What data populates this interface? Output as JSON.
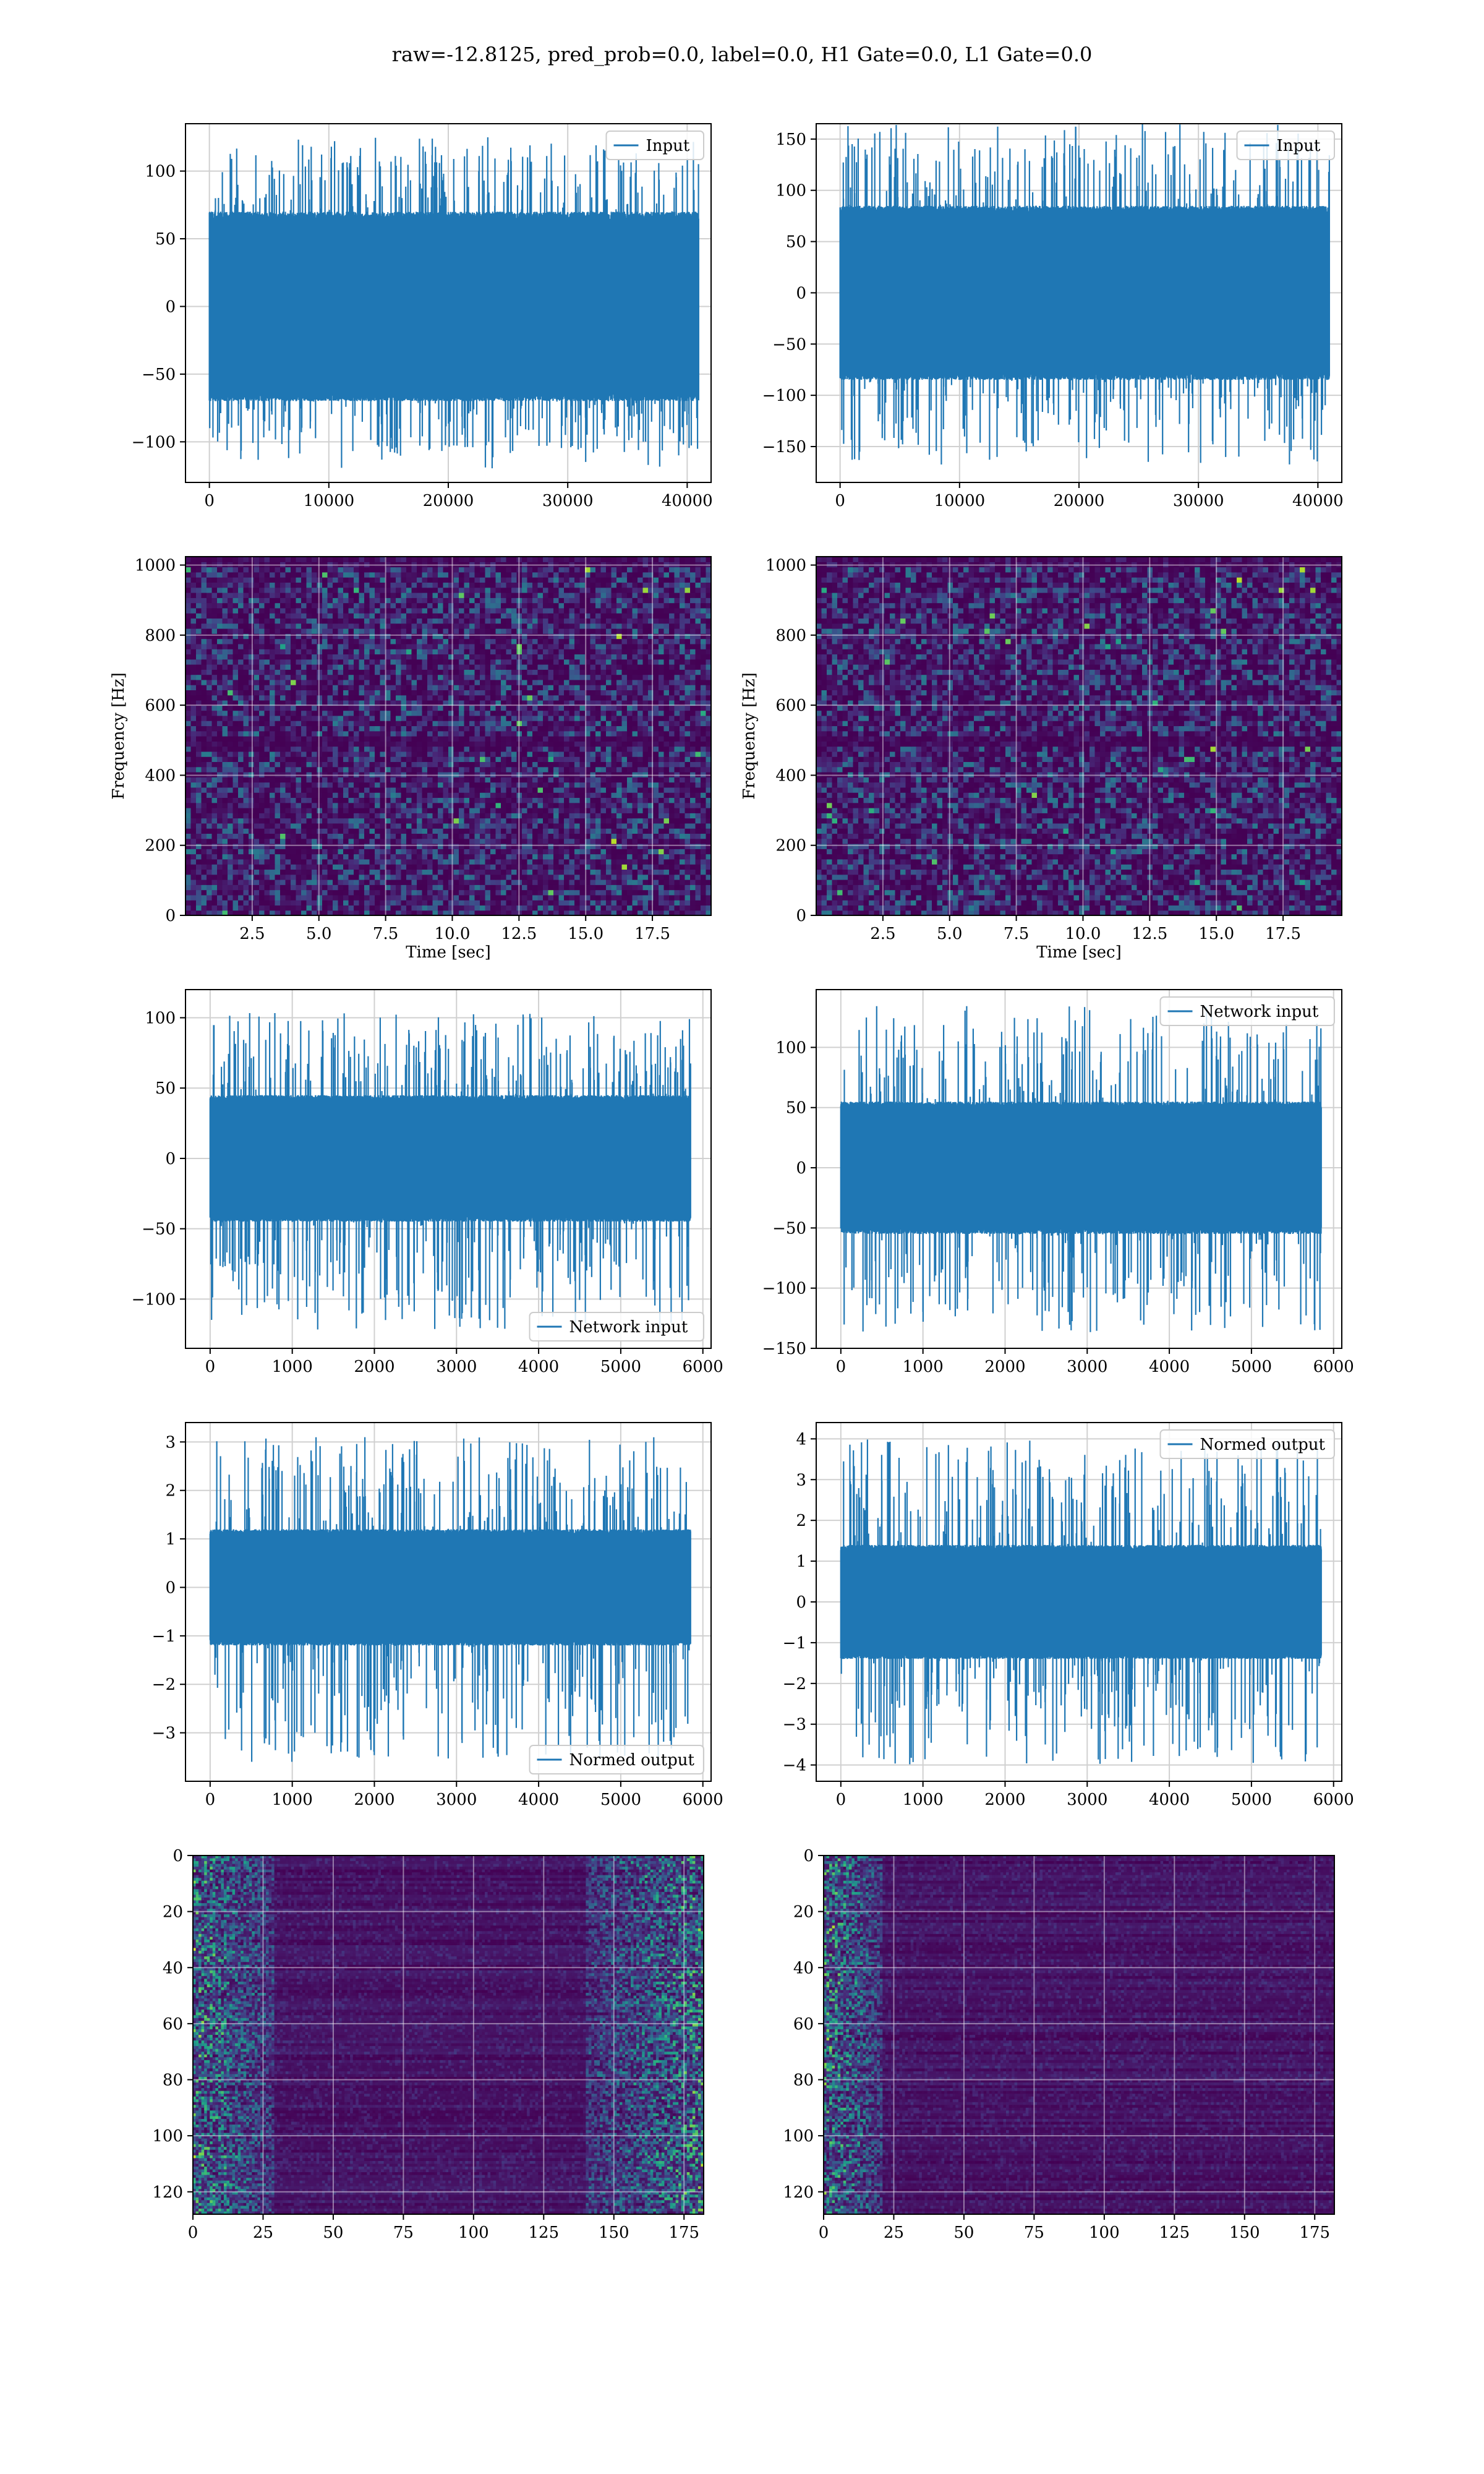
{
  "figure": {
    "suptitle": "raw=-12.8125, pred_prob=0.0, label=0.0, H1 Gate=0.0, L1 Gate=0.0",
    "colors": {
      "series": "#1f77b4",
      "grid": "#d0d0d0",
      "axis": "#000000",
      "viridis_dark": "#440154"
    }
  },
  "chart_data": [
    {
      "id": "input-h1",
      "type": "line",
      "row": 1,
      "col": 1,
      "title": "",
      "xlabel": "",
      "ylabel": "",
      "legend": {
        "entries": [
          "Input"
        ],
        "placement": "top-right"
      },
      "xlim": [
        -2000,
        42000
      ],
      "ylim": [
        -130,
        135
      ],
      "xticks": [
        0,
        10000,
        20000,
        30000,
        40000
      ],
      "xtick_labels": [
        "0",
        "10000",
        "20000",
        "30000",
        "40000"
      ],
      "yticks": [
        -100,
        -50,
        0,
        50,
        100
      ],
      "ytick_labels": [
        "−100",
        "−50",
        "0",
        "50",
        "100"
      ],
      "grid": true,
      "series": [
        {
          "name": "Input",
          "x_range": [
            0,
            40960
          ],
          "n_points": 40960,
          "core_abs": 70,
          "spike_max": 125,
          "spike_min": -120
        }
      ]
    },
    {
      "id": "input-l1",
      "type": "line",
      "row": 1,
      "col": 2,
      "title": "",
      "xlabel": "",
      "ylabel": "",
      "legend": {
        "entries": [
          "Input"
        ],
        "placement": "top-right"
      },
      "xlim": [
        -2000,
        42000
      ],
      "ylim": [
        -185,
        165
      ],
      "xticks": [
        0,
        10000,
        20000,
        30000,
        40000
      ],
      "xtick_labels": [
        "0",
        "10000",
        "20000",
        "30000",
        "40000"
      ],
      "yticks": [
        -150,
        -100,
        -50,
        0,
        50,
        100,
        150
      ],
      "ytick_labels": [
        "−150",
        "−100",
        "−50",
        "0",
        "50",
        "100",
        "150"
      ],
      "grid": true,
      "series": [
        {
          "name": "Input",
          "x_range": [
            0,
            40960
          ],
          "n_points": 40960,
          "core_abs": 85,
          "spike_max": 165,
          "spike_min": -168
        }
      ]
    },
    {
      "id": "spectrogram-h1",
      "type": "heatmap",
      "row": 2,
      "col": 1,
      "title": "",
      "xlabel": "Time [sec]",
      "ylabel": "Frequency [Hz]",
      "xlim": [
        0,
        19.7
      ],
      "ylim": [
        0,
        1024
      ],
      "xticks": [
        2.5,
        5.0,
        7.5,
        10.0,
        12.5,
        15.0,
        17.5
      ],
      "xtick_labels": [
        "2.5",
        "5.0",
        "7.5",
        "10.0",
        "12.5",
        "15.0",
        "17.5"
      ],
      "yticks": [
        0,
        200,
        400,
        600,
        800,
        1000
      ],
      "ytick_labels": [
        "0",
        "200",
        "400",
        "600",
        "800",
        "1000"
      ],
      "grid": true,
      "colormap": "viridis",
      "y_origin": "lower",
      "features": {
        "dark_band_hz": [
          490,
          510
        ],
        "top_band_hz": [
          1000,
          1024
        ]
      }
    },
    {
      "id": "spectrogram-l1",
      "type": "heatmap",
      "row": 2,
      "col": 2,
      "title": "",
      "xlabel": "Time [sec]",
      "ylabel": "Frequency [Hz]",
      "xlim": [
        0,
        19.7
      ],
      "ylim": [
        0,
        1024
      ],
      "xticks": [
        2.5,
        5.0,
        7.5,
        10.0,
        12.5,
        15.0,
        17.5
      ],
      "xtick_labels": [
        "2.5",
        "5.0",
        "7.5",
        "10.0",
        "12.5",
        "15.0",
        "17.5"
      ],
      "yticks": [
        0,
        200,
        400,
        600,
        800,
        1000
      ],
      "ytick_labels": [
        "0",
        "200",
        "400",
        "600",
        "800",
        "1000"
      ],
      "grid": true,
      "colormap": "viridis",
      "y_origin": "lower",
      "features": {
        "dark_band_hz": [
          490,
          510
        ],
        "top_band_hz": [
          1000,
          1024
        ]
      }
    },
    {
      "id": "network-input-h1",
      "type": "line",
      "row": 3,
      "col": 1,
      "title": "",
      "xlabel": "",
      "ylabel": "",
      "legend": {
        "entries": [
          "Network input"
        ],
        "placement": "lower-right"
      },
      "xlim": [
        -300,
        6100
      ],
      "ylim": [
        -135,
        120
      ],
      "xticks": [
        0,
        1000,
        2000,
        3000,
        4000,
        5000,
        6000
      ],
      "xtick_labels": [
        "0",
        "1000",
        "2000",
        "3000",
        "4000",
        "5000",
        "6000"
      ],
      "yticks": [
        -100,
        -50,
        0,
        50,
        100
      ],
      "ytick_labels": [
        "−100",
        "−50",
        "0",
        "50",
        "100"
      ],
      "grid": true,
      "series": [
        {
          "name": "Network input",
          "x_range": [
            0,
            5850
          ],
          "n_points": 5850,
          "core_abs": 45,
          "spike_max": 104,
          "spike_min": -122
        }
      ]
    },
    {
      "id": "network-input-l1",
      "type": "line",
      "row": 3,
      "col": 2,
      "title": "",
      "xlabel": "",
      "ylabel": "",
      "legend": {
        "entries": [
          "Network input"
        ],
        "placement": "top-right"
      },
      "xlim": [
        -300,
        6100
      ],
      "ylim": [
        -150,
        148
      ],
      "xticks": [
        0,
        1000,
        2000,
        3000,
        4000,
        5000,
        6000
      ],
      "xtick_labels": [
        "0",
        "1000",
        "2000",
        "3000",
        "4000",
        "5000",
        "6000"
      ],
      "yticks": [
        -150,
        -100,
        -50,
        0,
        50,
        100
      ],
      "ytick_labels": [
        "−150",
        "−100",
        "−50",
        "0",
        "50",
        "100"
      ],
      "grid": true,
      "series": [
        {
          "name": "Network input",
          "x_range": [
            0,
            5850
          ],
          "n_points": 5850,
          "core_abs": 55,
          "spike_max": 135,
          "spike_min": -137
        }
      ]
    },
    {
      "id": "normed-output-h1",
      "type": "line",
      "row": 4,
      "col": 1,
      "title": "",
      "xlabel": "",
      "ylabel": "",
      "legend": {
        "entries": [
          "Normed output"
        ],
        "placement": "lower-right"
      },
      "xlim": [
        -300,
        6100
      ],
      "ylim": [
        -4.0,
        3.4
      ],
      "xticks": [
        0,
        1000,
        2000,
        3000,
        4000,
        5000,
        6000
      ],
      "xtick_labels": [
        "0",
        "1000",
        "2000",
        "3000",
        "4000",
        "5000",
        "6000"
      ],
      "yticks": [
        -3,
        -2,
        -1,
        0,
        1,
        2,
        3
      ],
      "ytick_labels": [
        "−3",
        "−2",
        "−1",
        "0",
        "1",
        "2",
        "3"
      ],
      "grid": true,
      "series": [
        {
          "name": "Normed output",
          "x_range": [
            0,
            5850
          ],
          "n_points": 5850,
          "core_abs": 1.2,
          "spike_max": 3.1,
          "spike_min": -3.6
        }
      ]
    },
    {
      "id": "normed-output-l1",
      "type": "line",
      "row": 4,
      "col": 2,
      "title": "",
      "xlabel": "",
      "ylabel": "",
      "legend": {
        "entries": [
          "Normed output"
        ],
        "placement": "top-right"
      },
      "xlim": [
        -300,
        6100
      ],
      "ylim": [
        -4.4,
        4.4
      ],
      "xticks": [
        0,
        1000,
        2000,
        3000,
        4000,
        5000,
        6000
      ],
      "xtick_labels": [
        "0",
        "1000",
        "2000",
        "3000",
        "4000",
        "5000",
        "6000"
      ],
      "yticks": [
        -4,
        -3,
        -2,
        -1,
        0,
        1,
        2,
        3,
        4
      ],
      "ytick_labels": [
        "−4",
        "−3",
        "−2",
        "−1",
        "0",
        "1",
        "2",
        "3",
        "4"
      ],
      "grid": true,
      "series": [
        {
          "name": "Normed output",
          "x_range": [
            0,
            5850
          ],
          "n_points": 5850,
          "core_abs": 1.4,
          "spike_max": 4.0,
          "spike_min": -4.0
        }
      ]
    },
    {
      "id": "feature-map-h1",
      "type": "heatmap",
      "row": 5,
      "col": 1,
      "title": "",
      "xlabel": "",
      "ylabel": "",
      "xlim": [
        0,
        182
      ],
      "ylim": [
        128,
        0
      ],
      "xticks": [
        0,
        25,
        50,
        75,
        100,
        125,
        150,
        175
      ],
      "xtick_labels": [
        "0",
        "25",
        "50",
        "75",
        "100",
        "125",
        "150",
        "175"
      ],
      "yticks": [
        0,
        20,
        40,
        60,
        80,
        100,
        120
      ],
      "ytick_labels": [
        "0",
        "20",
        "40",
        "60",
        "80",
        "100",
        "120"
      ],
      "grid": true,
      "colormap": "viridis",
      "y_origin": "upper",
      "features": {
        "bright_columns": [
          [
            0,
            28
          ],
          [
            140,
            182
          ]
        ]
      }
    },
    {
      "id": "feature-map-l1",
      "type": "heatmap",
      "row": 5,
      "col": 2,
      "title": "",
      "xlabel": "",
      "ylabel": "",
      "xlim": [
        0,
        182
      ],
      "ylim": [
        128,
        0
      ],
      "xticks": [
        0,
        25,
        50,
        75,
        100,
        125,
        150,
        175
      ],
      "xtick_labels": [
        "0",
        "25",
        "50",
        "75",
        "100",
        "125",
        "150",
        "175"
      ],
      "yticks": [
        0,
        20,
        40,
        60,
        80,
        100,
        120
      ],
      "ytick_labels": [
        "0",
        "20",
        "40",
        "60",
        "80",
        "100",
        "120"
      ],
      "grid": true,
      "colormap": "viridis",
      "y_origin": "upper",
      "features": {
        "bright_columns": [
          [
            0,
            20
          ]
        ]
      }
    }
  ]
}
